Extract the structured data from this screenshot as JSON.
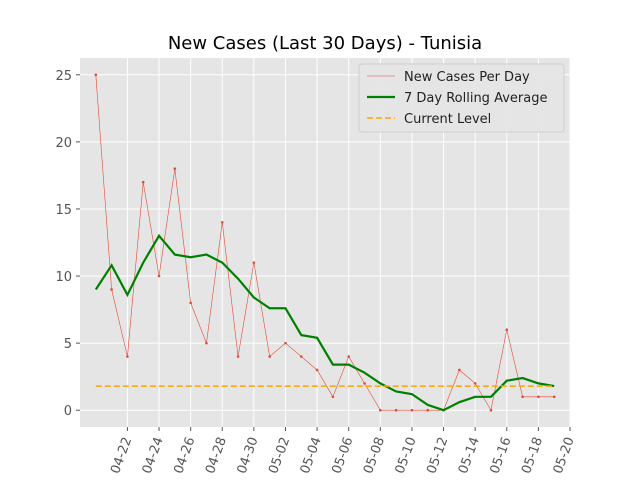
{
  "chart_data": {
    "type": "line",
    "title": "New Cases (Last 30 Days) - Tunisia",
    "x": [
      "04-20",
      "04-21",
      "04-22",
      "04-23",
      "04-24",
      "04-25",
      "04-26",
      "04-27",
      "04-28",
      "04-29",
      "04-30",
      "05-01",
      "05-02",
      "05-03",
      "05-04",
      "05-05",
      "05-06",
      "05-07",
      "05-08",
      "05-09",
      "05-10",
      "05-11",
      "05-12",
      "05-13",
      "05-14",
      "05-15",
      "05-16",
      "05-17",
      "05-18",
      "05-19"
    ],
    "series": [
      {
        "name": "New Cases Per Day",
        "color": "#e24a33",
        "style": "thin-points",
        "values": [
          25,
          9,
          4,
          17,
          10,
          18,
          8,
          5,
          14,
          4,
          11,
          4,
          5,
          4,
          3,
          1,
          4,
          2,
          0,
          0,
          0,
          0,
          0,
          3,
          2,
          0,
          6,
          1,
          1,
          1
        ]
      },
      {
        "name": "7 Day Rolling Average",
        "color": "#008000",
        "style": "thick",
        "values": [
          9,
          10.8,
          8.6,
          11,
          13,
          11.6,
          11.4,
          11.6,
          11,
          9.8,
          8.4,
          7.6,
          7.6,
          5.6,
          5.4,
          3.4,
          3.4,
          2.8,
          2,
          1.4,
          1.2,
          0.4,
          0,
          0.6,
          1,
          1,
          2.2,
          2.4,
          2,
          1.8
        ]
      },
      {
        "name": "Current Level",
        "color": "#ffa500",
        "style": "dashed",
        "value": 1.8
      }
    ],
    "xlim": [
      "04-19",
      "05-20"
    ],
    "xticks": [
      "04-22",
      "04-24",
      "04-26",
      "04-28",
      "04-30",
      "05-02",
      "05-04",
      "05-06",
      "05-08",
      "05-10",
      "05-12",
      "05-14",
      "05-16",
      "05-18",
      "05-20"
    ],
    "ylim": [
      -1.25,
      26.25
    ],
    "yticks": [
      0,
      5,
      10,
      15,
      20,
      25
    ],
    "grid": true,
    "legend": "upper right"
  }
}
